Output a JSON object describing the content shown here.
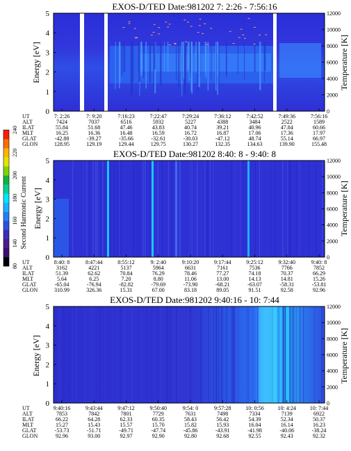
{
  "colorbar": {
    "label": "Second Harmonic Current",
    "ticks": [
      "80",
      "140",
      "160",
      "180",
      "200",
      "220",
      "240"
    ],
    "colors": [
      "#000000",
      "#3a0f6e",
      "#4b1a8c",
      "#3b2fb8",
      "#2d50e0",
      "#1f7fff",
      "#16b5ff",
      "#00e5ff",
      "#00d28c",
      "#13b43c",
      "#7ad700",
      "#e3e300",
      "#ffb400",
      "#ff6e00",
      "#ff1a00"
    ]
  },
  "param_labels": [
    "UT",
    "ALT",
    "ILAT",
    "MLT",
    "GLAT",
    "GLON"
  ],
  "chart_data": [
    {
      "type": "heatmap",
      "title": "EXOS-D/TED   Date:981202  7: 2:26 - 7:56:16",
      "ylabel": "Energy [eV]",
      "y2label": "Temperature [K]",
      "ylim": [
        0,
        5
      ],
      "y2lim": [
        0,
        12000
      ],
      "yticks": [
        "0",
        "1",
        "2",
        "3",
        "4",
        "5"
      ],
      "y2ticks": [
        "0",
        "2000",
        "4000",
        "6000",
        "8000",
        "10000",
        "12000"
      ],
      "columns": [
        {
          "UT": "7: 2:26",
          "ALT": "7424",
          "ILAT": "55.84",
          "MLT": "16.25",
          "GLAT": "-42.88",
          "GLON": "128.95"
        },
        {
          "UT": "7: 9:20",
          "ALT": "7037",
          "ILAT": "51.68",
          "MLT": "16.36",
          "GLAT": "-39.27",
          "GLON": "129.19"
        },
        {
          "UT": "7:16:23",
          "ALT": "6516",
          "ILAT": "47.46",
          "MLT": "16.48",
          "GLAT": "-35.66",
          "GLON": "129.44"
        },
        {
          "UT": "7:22:47",
          "ALT": "5932",
          "ILAT": "43.83",
          "MLT": "16.59",
          "GLAT": "-32.61",
          "GLON": "129.75"
        },
        {
          "UT": "7:29:24",
          "ALT": "5227",
          "ILAT": "40.74",
          "MLT": "16.72",
          "GLAT": "-30.03",
          "GLON": "130.27"
        },
        {
          "UT": "7:36:12",
          "ALT": "4388",
          "ILAT": "39.21",
          "MLT": "16.87",
          "GLAT": "-47.12",
          "GLON": "132.35"
        },
        {
          "UT": "7:42:52",
          "ALT": "3484",
          "ILAT": "40.96",
          "MLT": "17.06",
          "GLAT": "48.74",
          "GLON": "134.63"
        },
        {
          "UT": "7:49:36",
          "ALT": "2522",
          "ILAT": "47.84",
          "MLT": "17.36",
          "GLAT": "55.14",
          "GLON": "139.90"
        },
        {
          "UT": "7:56:16",
          "ALT": "1589",
          "ILAT": "60.66",
          "MLT": "17.97",
          "GLAT": "66.97",
          "GLON": "155.48"
        }
      ]
    },
    {
      "type": "heatmap",
      "title": "EXOS-D/TED   Date:981202  8:40: 8 - 9:40: 8",
      "ylabel": "Energy [eV]",
      "y2label": "Temperature [K]",
      "ylim": [
        0,
        5
      ],
      "y2lim": [
        0,
        12000
      ],
      "yticks": [
        "0",
        "1",
        "2",
        "3",
        "4",
        "5"
      ],
      "y2ticks": [
        "0",
        "2000",
        "4000",
        "6000",
        "8000",
        "10000",
        "12000"
      ],
      "columns": [
        {
          "UT": "8:40: 8",
          "ALT": "3162",
          "ILAT": "51.39",
          "MLT": "5.64",
          "GLAT": "-65.04",
          "GLON": "310.99"
        },
        {
          "UT": "8:47:44",
          "ALT": "4221",
          "ILAT": "62.62",
          "MLT": "6.25",
          "GLAT": "-76.94",
          "GLON": "326.36"
        },
        {
          "UT": "8:55:12",
          "ALT": "5137",
          "ILAT": "70.84",
          "MLT": "7.20",
          "GLAT": "-82.82",
          "GLON": "15.31"
        },
        {
          "UT": "9: 2:40",
          "ALT": "5964",
          "ILAT": "76.29",
          "MLT": "8.80",
          "GLAT": "-79.69",
          "GLON": "67.00"
        },
        {
          "UT": "9:10:20",
          "ALT": "6631",
          "ILAT": "78.46",
          "MLT": "11.06",
          "GLAT": "-73.90",
          "GLON": "83.18"
        },
        {
          "UT": "9:17:44",
          "ALT": "7161",
          "ILAT": "77.27",
          "MLT": "13.00",
          "GLAT": "-68.21",
          "GLON": "89.05"
        },
        {
          "UT": "9:25:12",
          "ALT": "7536",
          "ILAT": "74.18",
          "MLT": "14.13",
          "GLAT": "-63.07",
          "GLON": "91.51"
        },
        {
          "UT": "9:32:40",
          "ALT": "7766",
          "ILAT": "70.37",
          "MLT": "14.81",
          "GLAT": "-58.31",
          "GLON": "92.58"
        },
        {
          "UT": "9:40: 8",
          "ALT": "7852",
          "ILAT": "66.29",
          "MLT": "15.26",
          "GLAT": "-53.81",
          "GLON": "92.96"
        }
      ]
    },
    {
      "type": "heatmap",
      "title": "EXOS-D/TED   Date:981202  9:40:16 - 10: 7:44",
      "ylabel": "Energy [eV]",
      "y2label": "Temperature [K]",
      "ylim": [
        0,
        5
      ],
      "y2lim": [
        0,
        12000
      ],
      "yticks": [
        "0",
        "1",
        "2",
        "3",
        "4",
        "5"
      ],
      "y2ticks": [
        "0",
        "2000",
        "4000",
        "6000",
        "8000",
        "10000",
        "12000"
      ],
      "columns": [
        {
          "UT": "9:40:16",
          "ALT": "7853",
          "ILAT": "66.22",
          "MLT": "15.27",
          "GLAT": "-53.73",
          "GLON": "92.96"
        },
        {
          "UT": "9:43:44",
          "ALT": "7842",
          "ILAT": "64.28",
          "MLT": "15.43",
          "GLAT": "-51.71",
          "GLON": "93.00"
        },
        {
          "UT": "9:47:12",
          "ALT": "7801",
          "ILAT": "62.33",
          "MLT": "15.57",
          "GLAT": "-49.71",
          "GLON": "92.97"
        },
        {
          "UT": "9:50:40",
          "ALT": "7729",
          "ILAT": "60.35",
          "MLT": "15.70",
          "GLAT": "-47.74",
          "GLON": "92.90"
        },
        {
          "UT": "9:54: 0",
          "ALT": "7631",
          "ILAT": "58.43",
          "MLT": "15.82",
          "GLAT": "-45.86",
          "GLON": "92.80"
        },
        {
          "UT": "9:57:28",
          "ALT": "7498",
          "ILAT": "56.42",
          "MLT": "15.93",
          "GLAT": "-43.91",
          "GLON": "92.68"
        },
        {
          "UT": "10: 0:56",
          "ALT": "7334",
          "ILAT": "54.39",
          "MLT": "16.04",
          "GLAT": "-41.98",
          "GLON": "92.55"
        },
        {
          "UT": "10: 4:24",
          "ALT": "7139",
          "ILAT": "52.34",
          "MLT": "16.14",
          "GLAT": "-40.06",
          "GLON": "92.43"
        },
        {
          "UT": "10: 7:44",
          "ALT": "6922",
          "ILAT": "50.37",
          "MLT": "16.23",
          "GLAT": "-38.24",
          "GLON": "92.32"
        }
      ]
    }
  ]
}
